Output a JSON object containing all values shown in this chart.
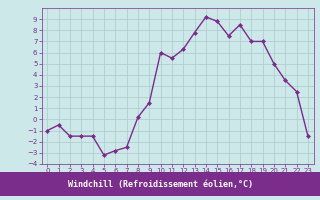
{
  "x": [
    0,
    1,
    2,
    3,
    4,
    5,
    6,
    7,
    8,
    9,
    10,
    11,
    12,
    13,
    14,
    15,
    16,
    17,
    18,
    19,
    20,
    21,
    22,
    23
  ],
  "y": [
    -1,
    -0.5,
    -1.5,
    -1.5,
    -1.5,
    -3.2,
    -2.8,
    -2.5,
    0.2,
    1.5,
    6.0,
    5.5,
    6.3,
    7.8,
    9.2,
    8.8,
    7.5,
    8.5,
    7.0,
    7.0,
    5.0,
    3.5,
    2.5,
    -1.5
  ],
  "line_color": "#7b2d8b",
  "marker": "D",
  "marker_size": 2.0,
  "linewidth": 1.0,
  "bg_color": "#cce8e8",
  "grid_color": "#aacccc",
  "xlabel": "Windchill (Refroidissement éolien,°C)",
  "ylim": [
    -4,
    10
  ],
  "xlim": [
    -0.5,
    23.5
  ],
  "yticks": [
    -4,
    -3,
    -2,
    -1,
    0,
    1,
    2,
    3,
    4,
    5,
    6,
    7,
    8,
    9
  ],
  "xticks": [
    0,
    1,
    2,
    3,
    4,
    5,
    6,
    7,
    8,
    9,
    10,
    11,
    12,
    13,
    14,
    15,
    16,
    17,
    18,
    19,
    20,
    21,
    22,
    23
  ],
  "tick_fontsize": 5.0,
  "xlabel_fontsize": 6.0,
  "xlabel_color": "#ffffff",
  "xlabel_bg": "#7b2d8b",
  "axis_label_color": "#7b2d8b",
  "spine_color": "#7b2d8b"
}
